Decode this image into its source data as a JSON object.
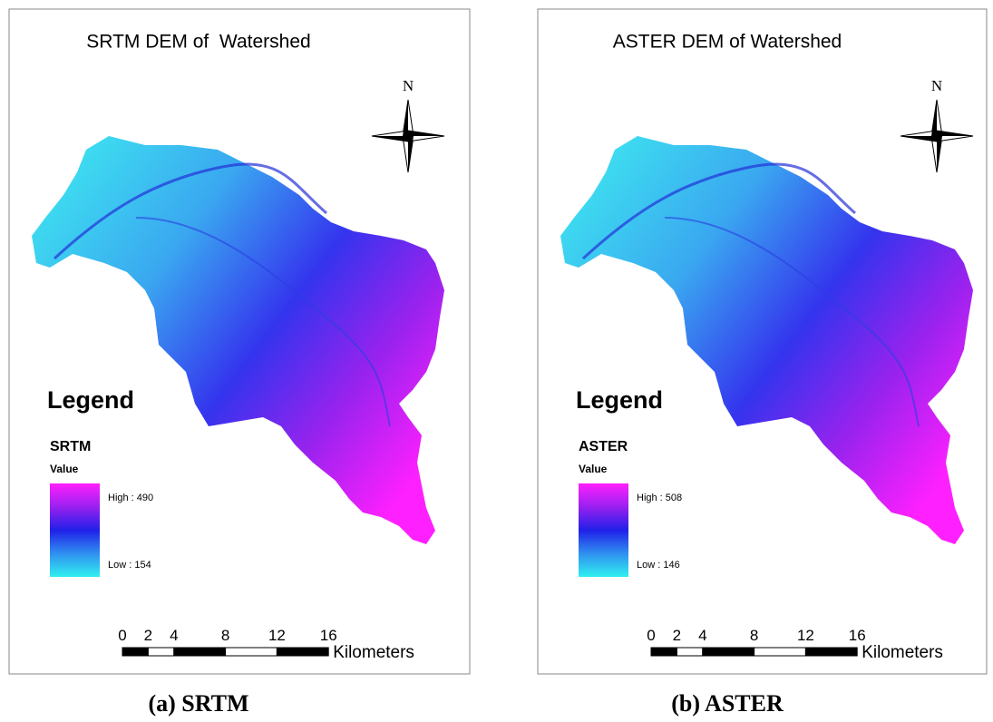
{
  "panels": [
    {
      "title": "SRTM DEM of  Watershed",
      "north": "N",
      "legend": {
        "title": "Legend",
        "layer": "SRTM",
        "field": "Value",
        "high": "High : 490",
        "low": "Low : 154"
      },
      "scale_bar": {
        "ticks": [
          0,
          2,
          4,
          8,
          12,
          16
        ],
        "unit": "Kilometers"
      },
      "caption": "(a) SRTM"
    },
    {
      "title": "ASTER DEM of Watershed",
      "north": "N",
      "legend": {
        "title": "Legend",
        "layer": "ASTER",
        "field": "Value",
        "high": "High : 508",
        "low": "Low : 146"
      },
      "scale_bar": {
        "ticks": [
          0,
          2,
          4,
          8,
          12,
          16
        ],
        "unit": "Kilometers"
      },
      "caption": "(b) ASTER"
    }
  ]
}
